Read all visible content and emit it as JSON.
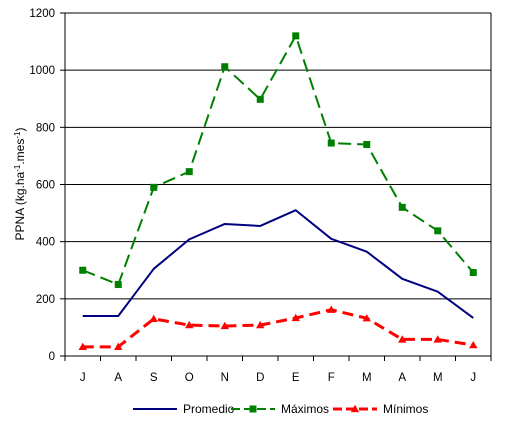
{
  "chart_data": {
    "type": "line",
    "categories": [
      "J",
      "A",
      "S",
      "O",
      "N",
      "D",
      "E",
      "F",
      "M",
      "A",
      "M",
      "J"
    ],
    "ylabel": "PPNA (kg.ha-1.mes-1)",
    "ylabel_parts": {
      "base": "PPNA (kg.ha",
      "sup1": "-1",
      "mid": ".mes",
      "sup2": "-1",
      "end": ")"
    },
    "ylim": [
      0,
      1200
    ],
    "yticks": [
      0,
      200,
      400,
      600,
      800,
      1000,
      1200
    ],
    "grid": true,
    "legend_position": "bottom",
    "series": [
      {
        "name": "Promedio",
        "color": "#000080",
        "style": "solid",
        "marker": "none",
        "values": [
          140,
          140,
          305,
          408,
          462,
          455,
          510,
          410,
          365,
          270,
          225,
          133
        ]
      },
      {
        "name": "Máximos",
        "color": "#008000",
        "style": "dashed",
        "marker": "square",
        "values": [
          300,
          250,
          590,
          645,
          1012,
          898,
          1120,
          745,
          740,
          520,
          438,
          292
        ]
      },
      {
        "name": "Mínimos",
        "color": "#ff0000",
        "style": "dashed",
        "marker": "triangle",
        "values": [
          32,
          32,
          130,
          108,
          105,
          108,
          133,
          162,
          132,
          58,
          58,
          38
        ]
      }
    ]
  }
}
